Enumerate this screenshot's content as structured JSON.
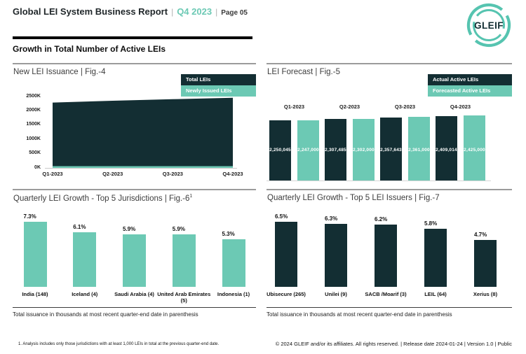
{
  "header": {
    "title": "Global LEI System Business Report",
    "period": "Q4 2023",
    "page": "Page 05",
    "separator": "|",
    "logo_text": "GLEIF",
    "section_title": "Growth in Total Number of Active LEIs"
  },
  "colors": {
    "dark": "#132e33",
    "teal": "#6cc9b4",
    "logo_teal": "#56c4b0",
    "accent_period": "#6cc9b4"
  },
  "chart_data": [
    {
      "type": "area",
      "title": "New LEI Issuance | Fig.-4",
      "x": [
        "Q1-2023",
        "Q2-2023",
        "Q3-2023",
        "Q4-2023"
      ],
      "series": [
        {
          "name": "Total LEIs",
          "color_key": "dark",
          "values": [
            2250045,
            2307485,
            2357643,
            2409014
          ]
        },
        {
          "name": "Newly Issued LEIs",
          "color_key": "teal",
          "values": [
            40000,
            45000,
            48000,
            50000
          ]
        }
      ],
      "ylim": [
        0,
        2500000
      ],
      "yticks": [
        "0K",
        "500K",
        "1000K",
        "1500K",
        "2000K",
        "2500K"
      ],
      "legend_position": "top-right",
      "grid": false
    },
    {
      "type": "bar",
      "title": "LEI Forecast | Fig.-5",
      "categories": [
        "Q1-2023",
        "Q2-2023",
        "Q3-2023",
        "Q4-2023"
      ],
      "series": [
        {
          "name": "Actual Active LEIs",
          "color_key": "dark",
          "values": [
            2250045,
            2307485,
            2357643,
            2409014
          ],
          "labels": [
            "2,250,045",
            "2,307,485",
            "2,357,643",
            "2,409,014"
          ]
        },
        {
          "name": "Forecasted Active LEIs",
          "color_key": "teal",
          "values": [
            2247000,
            2302000,
            2361000,
            2425000
          ],
          "labels": [
            "2,247,000",
            "2,302,000",
            "2,361,000",
            "2,425,000"
          ]
        }
      ],
      "legend_position": "top-right",
      "grid": false
    },
    {
      "type": "bar",
      "title": "Quarterly LEI Growth - Top 5 Jurisdictions | Fig.-6",
      "title_sup": "1",
      "categories": [
        "India (148)",
        "Iceland (4)",
        "Saudi Arabia (4)",
        "United Arab Emirates (5)",
        "Indonesia (1)"
      ],
      "values": [
        7.3,
        6.1,
        5.9,
        5.9,
        5.3
      ],
      "labels": [
        "7.3%",
        "6.1%",
        "5.9%",
        "5.9%",
        "5.3%"
      ],
      "bar_color_key": "teal",
      "note": "Total issuance in thousands at most recent quarter-end date in parenthesis",
      "grid": false
    },
    {
      "type": "bar",
      "title": "Quarterly LEI Growth - Top 5 LEI Issuers | Fig.-7",
      "categories": [
        "Ubisecure (265)",
        "Unilei (9)",
        "SACB /Moarif (3)",
        "LEIL (64)",
        "Xerius (8)"
      ],
      "values": [
        6.5,
        6.3,
        6.2,
        5.8,
        4.7
      ],
      "labels": [
        "6.5%",
        "6.3%",
        "6.2%",
        "5.8%",
        "4.7%"
      ],
      "bar_color_key": "dark",
      "note": "Total issuance in thousands at most recent quarter-end date in parenthesis",
      "grid": false
    }
  ],
  "footer": {
    "footnote": "1. Analysis includes only those jurisdictions with at least 1,000 LEIs in total at the previous quarter-end date.",
    "copyright": "© 2024 GLEIF and/or its affiliates. All rights reserved.  | Release date 2024-01-24 | Version 1.0 | Public"
  }
}
